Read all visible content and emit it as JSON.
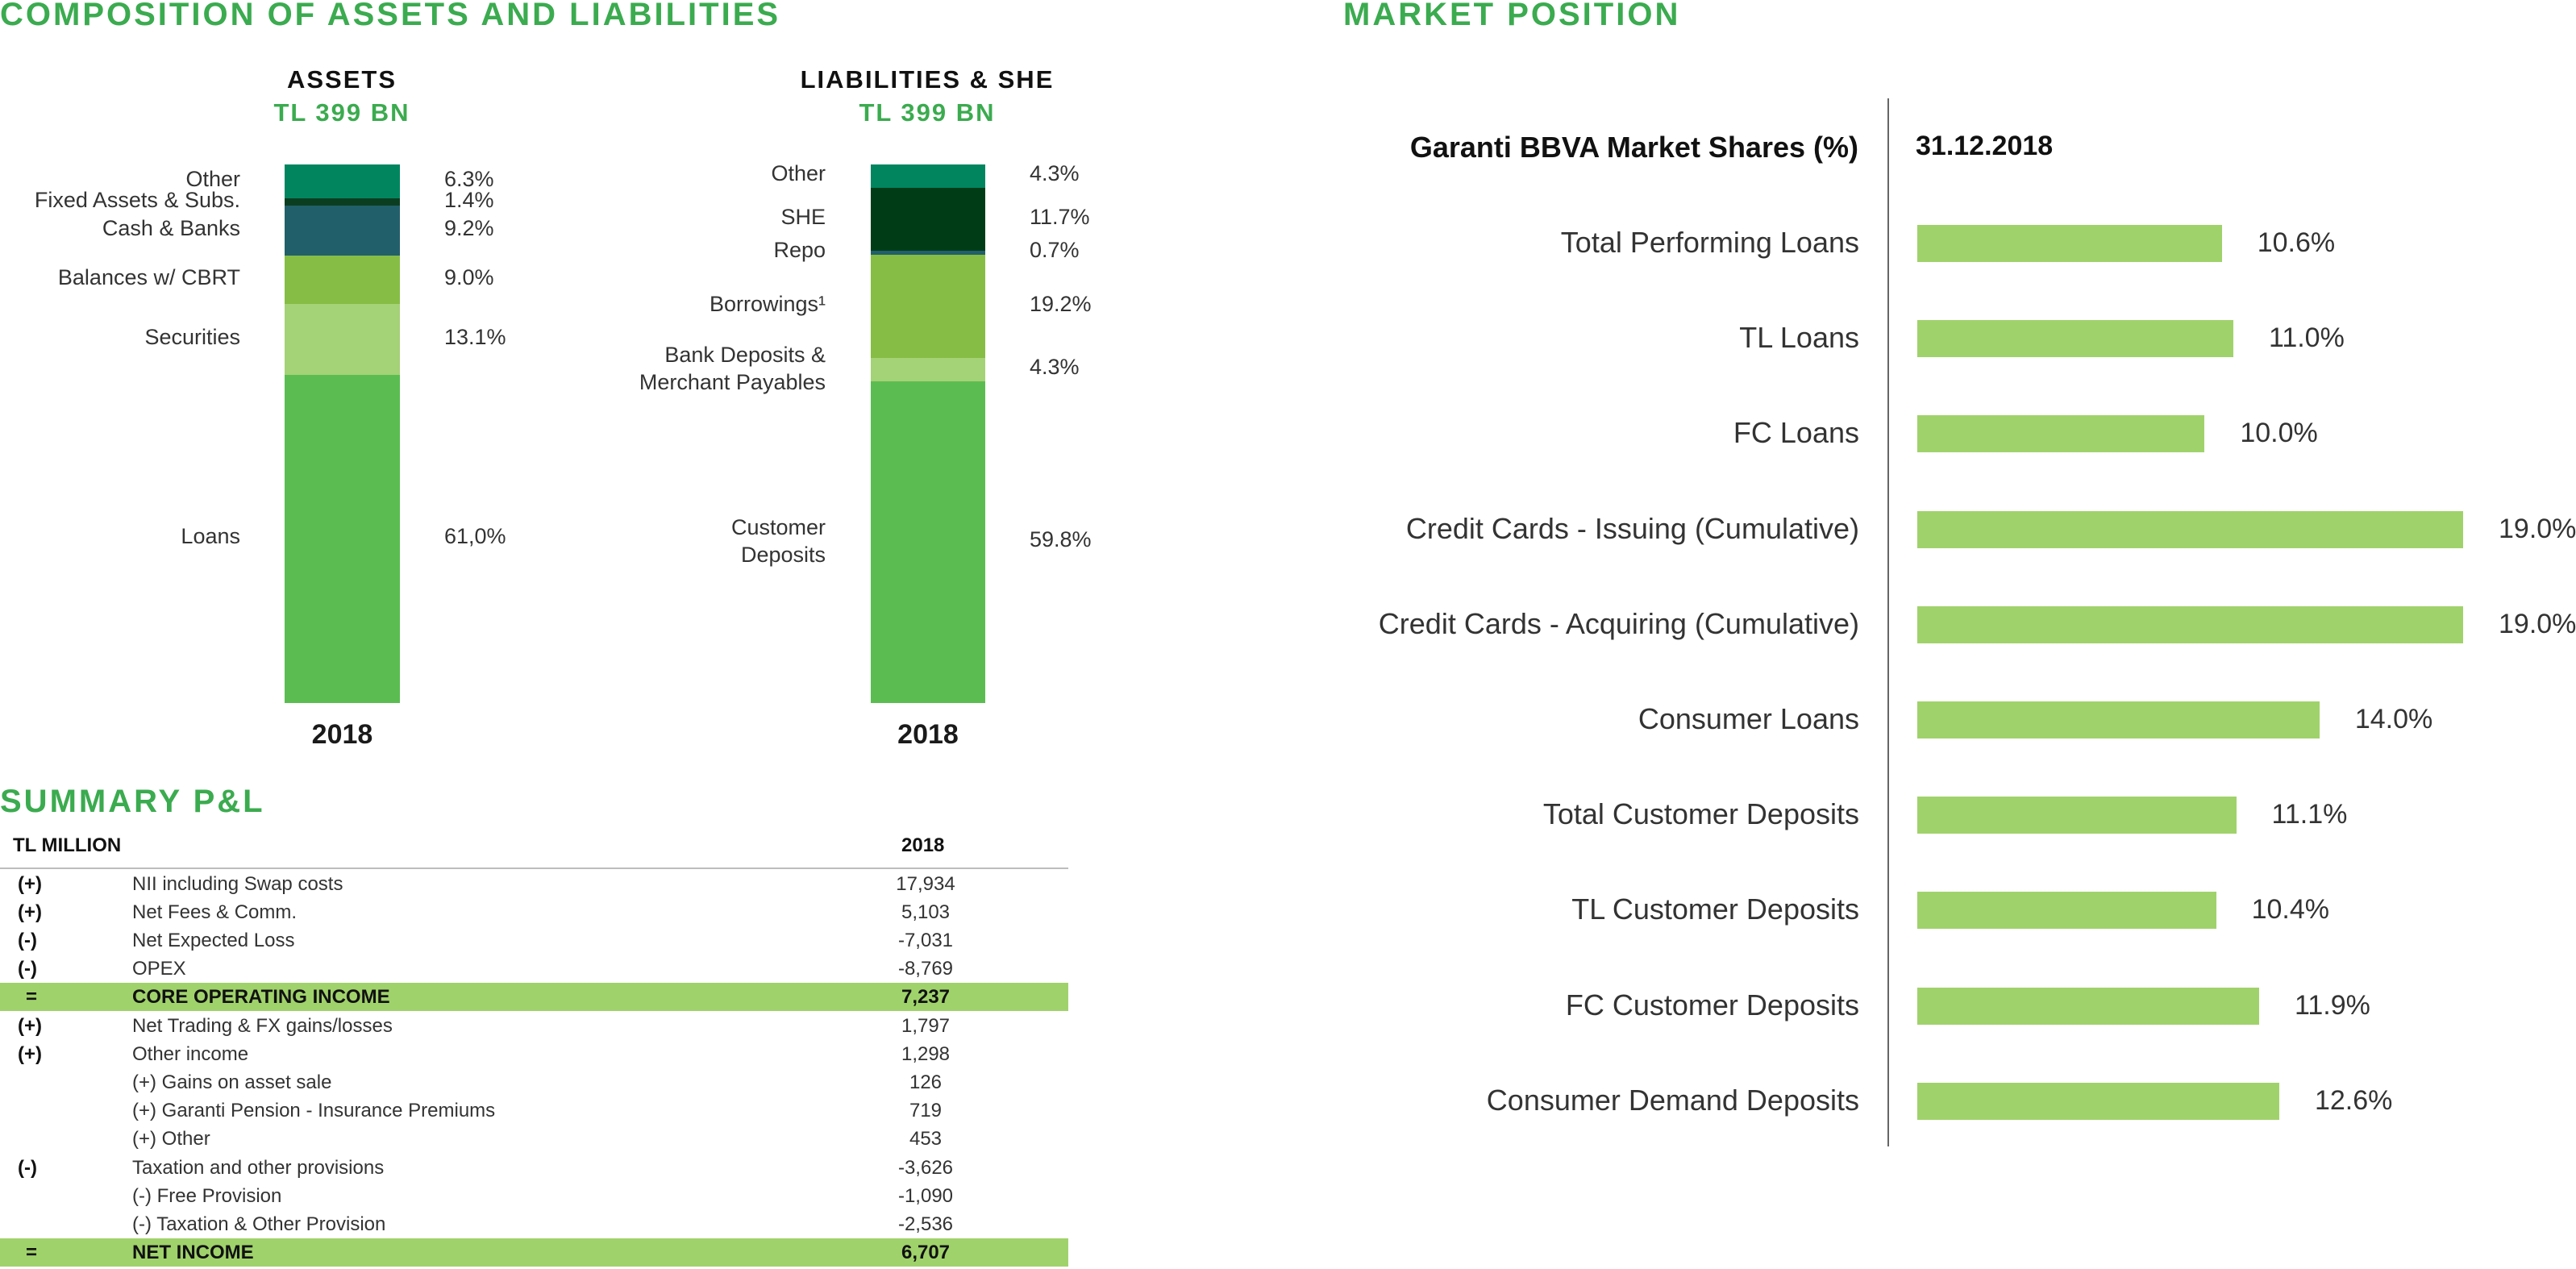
{
  "left": {
    "title": "COMPOSITION OF ASSETS AND LIABILITIES"
  },
  "right": {
    "title": "MARKET POSITION"
  },
  "chart_data": [
    {
      "type": "bar",
      "subtype": "stacked-100",
      "title": "ASSETS",
      "subtitle": "TL 399 BN",
      "categories": [
        "2018"
      ],
      "segments": [
        {
          "label": "Other",
          "value": 6.3,
          "value_text": "6.3%",
          "color": "#00855f"
        },
        {
          "label": "Fixed Assets & Subs.",
          "value": 1.4,
          "value_text": "1.4%",
          "color": "#0b3e21"
        },
        {
          "label": "Cash & Banks",
          "value": 9.2,
          "value_text": "9.2%",
          "color": "#215f6b"
        },
        {
          "label": "Balances w/ CBRT",
          "value": 9.0,
          "value_text": "9.0%",
          "color": "#86bd45"
        },
        {
          "label": "Securities",
          "value": 13.1,
          "value_text": "13.1%",
          "color": "#a4d276"
        },
        {
          "label": "Loans",
          "value": 61.0,
          "value_text": "61,0%",
          "color": "#5bbd51"
        }
      ]
    },
    {
      "type": "bar",
      "subtype": "stacked-100",
      "title": "LIABILITIES & SHE",
      "subtitle": "TL 399 BN",
      "categories": [
        "2018"
      ],
      "segments": [
        {
          "label": "Other",
          "value": 4.3,
          "value_text": "4.3%",
          "color": "#00855f"
        },
        {
          "label": "SHE",
          "value": 11.7,
          "value_text": "11.7%",
          "color": "#003d17"
        },
        {
          "label": "Repo",
          "value": 0.7,
          "value_text": "0.7%",
          "color": "#215f6b"
        },
        {
          "label": "Borrowings¹",
          "value": 19.2,
          "value_text": "19.2%",
          "color": "#86bd45"
        },
        {
          "label": "Bank Deposits &\nMerchant Payables",
          "value": 4.3,
          "value_text": "4.3%",
          "color": "#a4d276"
        },
        {
          "label": "Customer\nDeposits",
          "value": 59.8,
          "value_text": "59.8%",
          "color": "#5bbd51"
        }
      ]
    },
    {
      "type": "bar",
      "orientation": "horizontal",
      "title": "Garanti BBVA Market Shares (%)",
      "subtitle": "31.12.2018",
      "categories": [
        "Total Performing Loans",
        "TL Loans",
        "FC Loans",
        "Credit Cards - Issuing (Cumulative)",
        "Credit Cards - Acquiring (Cumulative)",
        "Consumer Loans",
        "Total Customer Deposits",
        "TL Customer Deposits",
        "FC Customer Deposits",
        "Consumer Demand Deposits"
      ],
      "values": [
        10.6,
        11.0,
        10.0,
        19.0,
        19.0,
        14.0,
        11.1,
        10.4,
        11.9,
        12.6
      ],
      "value_labels": [
        "10.6%",
        "11.0%",
        "10.0%",
        "19.0%",
        "19.0%",
        "14.0%",
        "11.1%",
        "10.4%",
        "11.9%",
        "12.6%"
      ],
      "xlim": [
        0,
        19
      ],
      "color": "#a0d26b"
    },
    {
      "type": "table",
      "title": "SUMMARY P&L",
      "unit_label": "TL MILLION",
      "columns": [
        "",
        "",
        "2018"
      ],
      "rows": [
        {
          "sign": "(+)",
          "label": "NII including Swap costs",
          "value": "17,934",
          "indent": 0,
          "highlight": false
        },
        {
          "sign": "(+)",
          "label": "Net Fees & Comm.",
          "value": "5,103",
          "indent": 0,
          "highlight": false
        },
        {
          "sign": "(-)",
          "label": "Net Expected Loss",
          "value": "-7,031",
          "indent": 0,
          "highlight": false
        },
        {
          "sign": "(-)",
          "label": "OPEX",
          "value": "-8,769",
          "indent": 0,
          "highlight": false
        },
        {
          "sign": "=",
          "label": "CORE OPERATING INCOME",
          "value": "7,237",
          "indent": 0,
          "highlight": true
        },
        {
          "sign": "(+)",
          "label": "Net Trading & FX gains/losses",
          "value": "1,797",
          "indent": 0,
          "highlight": false
        },
        {
          "sign": "(+)",
          "label": "Other income",
          "value": "1,298",
          "indent": 0,
          "highlight": false
        },
        {
          "sign": "",
          "label": "(+) Gains on asset sale",
          "value": "126",
          "indent": 0,
          "highlight": false
        },
        {
          "sign": "",
          "label": "(+) Garanti Pension - Insurance Premiums",
          "value": "719",
          "indent": 0,
          "highlight": false
        },
        {
          "sign": "",
          "label": "(+) Other",
          "value": "453",
          "indent": 0,
          "highlight": false
        },
        {
          "sign": "(-)",
          "label": "Taxation and other provisions",
          "value": "-3,626",
          "indent": 0,
          "highlight": false
        },
        {
          "sign": "",
          "label": "(-) Free Provision",
          "value": "-1,090",
          "indent": 0,
          "highlight": false
        },
        {
          "sign": "",
          "label": "(-) Taxation & Other Provision",
          "value": "-2,536",
          "indent": 0,
          "highlight": false
        },
        {
          "sign": "=",
          "label": "NET INCOME",
          "value": "6,707",
          "indent": 0,
          "highlight": true
        }
      ]
    }
  ]
}
